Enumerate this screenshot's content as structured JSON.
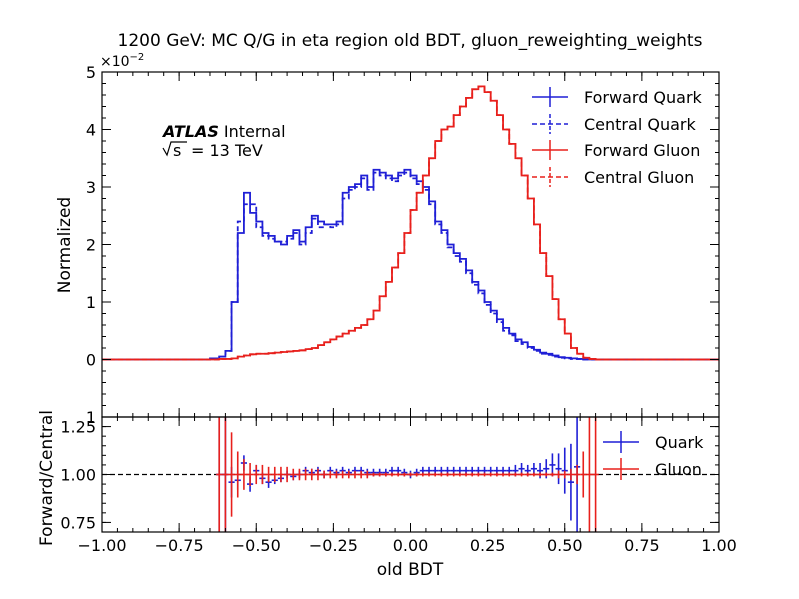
{
  "chart_data": [
    {
      "type": "line",
      "panel": "main",
      "title": "1200 GeV: MC Q/G in eta region old BDT, gluon_reweighting_weights",
      "ylabel": "Normalized",
      "y_scale_label": "×10",
      "y_scale_exp": "−2",
      "xlim": [
        -1.0,
        1.0
      ],
      "ylim": [
        -1,
        5
      ],
      "y_ticks": [
        0,
        1,
        2,
        3,
        4,
        5
      ],
      "y_tick_labels": [
        "0",
        "1",
        "2",
        "3",
        "4",
        "5"
      ],
      "y_tick_partial": "1",
      "annotation": {
        "atlas": "ATLAS",
        "status": "Internal",
        "sqrt_s": "s",
        "energy": "= 13 TeV"
      },
      "legend_position": "top-right",
      "series": [
        {
          "name": "Forward Quark",
          "color": "#1f1fd6",
          "style": "solid",
          "x": [
            -1.0,
            -0.7,
            -0.65,
            -0.62,
            -0.6,
            -0.58,
            -0.56,
            -0.54,
            -0.52,
            -0.5,
            -0.48,
            -0.46,
            -0.44,
            -0.42,
            -0.4,
            -0.38,
            -0.36,
            -0.34,
            -0.32,
            -0.3,
            -0.28,
            -0.26,
            -0.24,
            -0.22,
            -0.2,
            -0.18,
            -0.16,
            -0.14,
            -0.12,
            -0.1,
            -0.08,
            -0.06,
            -0.04,
            -0.02,
            0.0,
            0.02,
            0.04,
            0.06,
            0.08,
            0.1,
            0.12,
            0.14,
            0.16,
            0.18,
            0.2,
            0.22,
            0.24,
            0.26,
            0.28,
            0.3,
            0.32,
            0.34,
            0.36,
            0.38,
            0.4,
            0.42,
            0.44,
            0.46,
            0.48,
            0.5,
            0.52,
            0.54,
            0.56,
            1.0
          ],
          "y": [
            0.0,
            0.0,
            0.02,
            0.05,
            0.15,
            1.0,
            2.2,
            2.9,
            2.55,
            2.4,
            2.2,
            2.15,
            2.05,
            2.0,
            2.15,
            2.25,
            2.05,
            2.3,
            2.5,
            2.4,
            2.35,
            2.35,
            2.4,
            2.9,
            3.0,
            3.05,
            3.2,
            3.0,
            3.3,
            3.25,
            3.2,
            3.15,
            3.25,
            3.3,
            3.2,
            3.1,
            3.0,
            2.75,
            2.4,
            2.25,
            2.0,
            1.85,
            1.75,
            1.55,
            1.35,
            1.2,
            1.0,
            0.85,
            0.7,
            0.55,
            0.45,
            0.35,
            0.3,
            0.22,
            0.17,
            0.12,
            0.1,
            0.07,
            0.04,
            0.03,
            0.02,
            0.01,
            0.0,
            0.0
          ]
        },
        {
          "name": "Central Quark",
          "color": "#1f1fd6",
          "style": "dashed",
          "x": [
            -1.0,
            -0.7,
            -0.65,
            -0.62,
            -0.6,
            -0.58,
            -0.56,
            -0.54,
            -0.52,
            -0.5,
            -0.48,
            -0.46,
            -0.44,
            -0.42,
            -0.4,
            -0.38,
            -0.36,
            -0.34,
            -0.32,
            -0.3,
            -0.28,
            -0.26,
            -0.24,
            -0.22,
            -0.2,
            -0.18,
            -0.16,
            -0.14,
            -0.12,
            -0.1,
            -0.08,
            -0.06,
            -0.04,
            -0.02,
            0.0,
            0.02,
            0.04,
            0.06,
            0.08,
            0.1,
            0.12,
            0.14,
            0.16,
            0.18,
            0.2,
            0.22,
            0.24,
            0.26,
            0.28,
            0.3,
            0.32,
            0.34,
            0.36,
            0.38,
            0.4,
            0.42,
            0.44,
            0.46,
            0.48,
            0.5,
            0.52,
            0.54,
            0.56,
            1.0
          ],
          "y": [
            0.0,
            0.0,
            0.02,
            0.05,
            0.15,
            1.0,
            2.4,
            2.7,
            2.7,
            2.3,
            2.15,
            2.1,
            2.05,
            2.05,
            2.1,
            2.2,
            2.0,
            2.2,
            2.45,
            2.3,
            2.35,
            2.3,
            2.35,
            2.8,
            2.95,
            3.0,
            3.15,
            2.95,
            3.25,
            3.2,
            3.15,
            3.1,
            3.2,
            3.25,
            3.15,
            3.05,
            2.95,
            2.7,
            2.35,
            2.2,
            1.95,
            1.8,
            1.7,
            1.5,
            1.3,
            1.15,
            0.95,
            0.8,
            0.65,
            0.5,
            0.42,
            0.32,
            0.27,
            0.2,
            0.15,
            0.1,
            0.08,
            0.05,
            0.03,
            0.02,
            0.01,
            0.01,
            0.0,
            0.0
          ]
        },
        {
          "name": "Forward Gluon",
          "color": "#e8201c",
          "style": "solid",
          "x": [
            -1.0,
            -0.7,
            -0.62,
            -0.58,
            -0.56,
            -0.54,
            -0.52,
            -0.5,
            -0.48,
            -0.46,
            -0.44,
            -0.42,
            -0.4,
            -0.38,
            -0.36,
            -0.34,
            -0.32,
            -0.3,
            -0.28,
            -0.26,
            -0.24,
            -0.22,
            -0.2,
            -0.18,
            -0.16,
            -0.14,
            -0.12,
            -0.1,
            -0.08,
            -0.06,
            -0.04,
            -0.02,
            0.0,
            0.02,
            0.04,
            0.06,
            0.08,
            0.1,
            0.12,
            0.14,
            0.16,
            0.18,
            0.2,
            0.22,
            0.24,
            0.26,
            0.28,
            0.3,
            0.32,
            0.34,
            0.36,
            0.38,
            0.4,
            0.42,
            0.44,
            0.46,
            0.48,
            0.5,
            0.52,
            0.54,
            0.56,
            0.58,
            0.6,
            1.0
          ],
          "y": [
            0.0,
            0.0,
            0.01,
            0.02,
            0.05,
            0.07,
            0.09,
            0.1,
            0.1,
            0.11,
            0.12,
            0.13,
            0.14,
            0.15,
            0.16,
            0.18,
            0.2,
            0.25,
            0.3,
            0.35,
            0.4,
            0.45,
            0.5,
            0.55,
            0.6,
            0.7,
            0.85,
            1.1,
            1.35,
            1.6,
            1.85,
            2.2,
            2.6,
            2.9,
            3.2,
            3.5,
            3.8,
            4.0,
            4.05,
            4.25,
            4.4,
            4.55,
            4.7,
            4.75,
            4.65,
            4.5,
            4.25,
            4.0,
            3.75,
            3.5,
            3.2,
            2.8,
            2.35,
            1.85,
            1.45,
            1.05,
            0.7,
            0.45,
            0.2,
            0.1,
            0.03,
            0.01,
            0.0,
            0.0
          ]
        },
        {
          "name": "Central Gluon",
          "color": "#e8201c",
          "style": "dashed",
          "x": [
            -1.0,
            -0.7,
            -0.62,
            -0.58,
            -0.56,
            -0.54,
            -0.52,
            -0.5,
            -0.48,
            -0.46,
            -0.44,
            -0.42,
            -0.4,
            -0.38,
            -0.36,
            -0.34,
            -0.32,
            -0.3,
            -0.28,
            -0.26,
            -0.24,
            -0.22,
            -0.2,
            -0.18,
            -0.16,
            -0.14,
            -0.12,
            -0.1,
            -0.08,
            -0.06,
            -0.04,
            -0.02,
            0.0,
            0.02,
            0.04,
            0.06,
            0.08,
            0.1,
            0.12,
            0.14,
            0.16,
            0.18,
            0.2,
            0.22,
            0.24,
            0.26,
            0.28,
            0.3,
            0.32,
            0.34,
            0.36,
            0.38,
            0.4,
            0.42,
            0.44,
            0.46,
            0.48,
            0.5,
            0.52,
            0.54,
            0.56,
            0.58,
            0.6,
            1.0
          ],
          "y": [
            0.0,
            0.0,
            0.01,
            0.02,
            0.05,
            0.07,
            0.09,
            0.1,
            0.1,
            0.11,
            0.12,
            0.13,
            0.14,
            0.15,
            0.16,
            0.18,
            0.2,
            0.25,
            0.3,
            0.35,
            0.4,
            0.45,
            0.5,
            0.55,
            0.6,
            0.7,
            0.85,
            1.1,
            1.35,
            1.6,
            1.85,
            2.2,
            2.6,
            2.9,
            3.2,
            3.5,
            3.8,
            4.0,
            4.05,
            4.25,
            4.4,
            4.55,
            4.7,
            4.75,
            4.65,
            4.5,
            4.25,
            4.0,
            3.75,
            3.5,
            3.2,
            2.8,
            2.35,
            1.85,
            1.45,
            1.05,
            0.7,
            0.45,
            0.2,
            0.1,
            0.03,
            0.01,
            0.0,
            0.0
          ]
        }
      ]
    },
    {
      "type": "line",
      "panel": "ratio",
      "xlabel": "old BDT",
      "ylabel": "Forward/Central",
      "xlim": [
        -1.0,
        1.0
      ],
      "ylim": [
        0.7,
        1.3
      ],
      "x_ticks": [
        -1.0,
        -0.75,
        -0.5,
        -0.25,
        0.0,
        0.25,
        0.5,
        0.75,
        1.0
      ],
      "x_tick_labels": [
        "−1.00",
        "−0.75",
        "−0.50",
        "−0.25",
        "0.00",
        "0.25",
        "0.50",
        "0.75",
        "1.00"
      ],
      "y_ticks": [
        0.75,
        1.0,
        1.25
      ],
      "y_tick_labels": [
        "0.75",
        "1.00",
        "1.25"
      ],
      "reference_line": 1.0,
      "legend_position": "top-right",
      "series": [
        {
          "name": "Quark",
          "color": "#1f1fd6",
          "x": [
            -0.62,
            -0.6,
            -0.58,
            -0.56,
            -0.54,
            -0.52,
            -0.5,
            -0.48,
            -0.46,
            -0.44,
            -0.42,
            -0.4,
            -0.38,
            -0.36,
            -0.34,
            -0.32,
            -0.3,
            -0.28,
            -0.26,
            -0.24,
            -0.22,
            -0.2,
            -0.18,
            -0.16,
            -0.14,
            -0.12,
            -0.1,
            -0.08,
            -0.06,
            -0.04,
            -0.02,
            0.0,
            0.02,
            0.04,
            0.06,
            0.08,
            0.1,
            0.12,
            0.14,
            0.16,
            0.18,
            0.2,
            0.22,
            0.24,
            0.26,
            0.28,
            0.3,
            0.32,
            0.34,
            0.36,
            0.38,
            0.4,
            0.42,
            0.44,
            0.46,
            0.48,
            0.5,
            0.52,
            0.54
          ],
          "y": [
            1.0,
            1.0,
            0.96,
            0.97,
            1.06,
            0.95,
            1.02,
            0.98,
            0.96,
            0.97,
            0.98,
            1.0,
            0.99,
            1.0,
            1.02,
            1.01,
            1.02,
            1.0,
            1.02,
            1.01,
            1.02,
            1.01,
            1.02,
            1.02,
            1.01,
            1.01,
            1.01,
            1.01,
            1.02,
            1.02,
            1.01,
            1.0,
            1.01,
            1.02,
            1.02,
            1.02,
            1.02,
            1.02,
            1.02,
            1.02,
            1.02,
            1.02,
            1.02,
            1.02,
            1.02,
            1.02,
            1.02,
            1.02,
            1.02,
            1.03,
            1.02,
            1.03,
            1.02,
            1.03,
            1.05,
            1.03,
            1.02,
            0.96,
            1.04
          ],
          "err": [
            0.35,
            0.3,
            0.08,
            0.05,
            0.04,
            0.04,
            0.03,
            0.03,
            0.03,
            0.02,
            0.02,
            0.02,
            0.02,
            0.02,
            0.02,
            0.02,
            0.02,
            0.02,
            0.02,
            0.02,
            0.02,
            0.02,
            0.02,
            0.02,
            0.02,
            0.02,
            0.02,
            0.02,
            0.02,
            0.02,
            0.02,
            0.02,
            0.02,
            0.02,
            0.02,
            0.02,
            0.02,
            0.02,
            0.02,
            0.02,
            0.02,
            0.02,
            0.02,
            0.02,
            0.02,
            0.02,
            0.02,
            0.02,
            0.03,
            0.03,
            0.03,
            0.03,
            0.04,
            0.05,
            0.06,
            0.08,
            0.12,
            0.2,
            0.35
          ]
        },
        {
          "name": "Gluon",
          "color": "#e8201c",
          "x": [
            -0.62,
            -0.6,
            -0.58,
            -0.56,
            -0.54,
            -0.52,
            -0.5,
            -0.48,
            -0.46,
            -0.44,
            -0.42,
            -0.4,
            -0.38,
            -0.36,
            -0.34,
            -0.32,
            -0.3,
            -0.28,
            -0.26,
            -0.24,
            -0.22,
            -0.2,
            -0.18,
            -0.16,
            -0.14,
            -0.12,
            -0.1,
            -0.08,
            -0.06,
            -0.04,
            -0.02,
            0.0,
            0.02,
            0.04,
            0.06,
            0.08,
            0.1,
            0.12,
            0.14,
            0.16,
            0.18,
            0.2,
            0.22,
            0.24,
            0.26,
            0.28,
            0.3,
            0.32,
            0.34,
            0.36,
            0.38,
            0.4,
            0.42,
            0.44,
            0.46,
            0.48,
            0.5,
            0.52,
            0.54,
            0.56,
            0.58,
            0.6
          ],
          "y": [
            1.0,
            1.0,
            1.0,
            1.0,
            1.0,
            1.0,
            1.0,
            1.0,
            1.0,
            1.0,
            1.0,
            1.0,
            1.0,
            1.0,
            1.0,
            1.0,
            1.0,
            1.0,
            1.0,
            1.0,
            1.0,
            1.0,
            1.0,
            1.0,
            1.0,
            1.0,
            1.0,
            1.0,
            1.0,
            1.0,
            1.0,
            1.0,
            1.0,
            1.0,
            1.0,
            1.0,
            1.0,
            1.0,
            1.0,
            1.0,
            1.0,
            1.0,
            1.0,
            1.0,
            1.0,
            1.0,
            1.0,
            1.0,
            1.0,
            1.0,
            1.0,
            1.0,
            1.0,
            1.0,
            1.0,
            1.0,
            1.0,
            1.0,
            1.0,
            1.0,
            1.0,
            1.0
          ],
          "err": [
            0.35,
            0.35,
            0.22,
            0.12,
            0.08,
            0.06,
            0.05,
            0.05,
            0.04,
            0.04,
            0.04,
            0.04,
            0.03,
            0.03,
            0.03,
            0.03,
            0.03,
            0.02,
            0.02,
            0.02,
            0.02,
            0.02,
            0.02,
            0.02,
            0.02,
            0.01,
            0.01,
            0.01,
            0.01,
            0.01,
            0.01,
            0.01,
            0.01,
            0.01,
            0.01,
            0.01,
            0.01,
            0.01,
            0.01,
            0.01,
            0.01,
            0.01,
            0.01,
            0.01,
            0.01,
            0.01,
            0.01,
            0.01,
            0.01,
            0.01,
            0.01,
            0.01,
            0.01,
            0.01,
            0.01,
            0.02,
            0.02,
            0.03,
            0.05,
            0.12,
            0.35,
            0.35
          ]
        }
      ]
    }
  ]
}
